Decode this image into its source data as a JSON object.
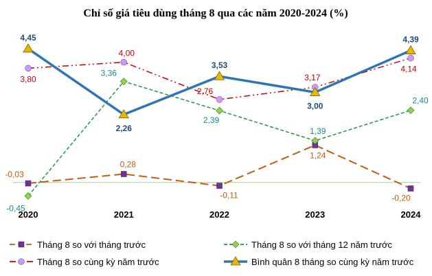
{
  "chart_data": {
    "type": "line",
    "title": "Chỉ số giá tiêu dùng tháng 8 qua các năm 2020-2024 (%)",
    "categories": [
      "2020",
      "2021",
      "2022",
      "2023",
      "2024"
    ],
    "ylim": [
      -0.6,
      4.7
    ],
    "grid": false,
    "legend_position": "bottom",
    "series": [
      {
        "name": "Tháng 8 so với tháng trước",
        "values": [
          -0.03,
          0.28,
          -0.11,
          1.24,
          -0.2
        ],
        "labels": [
          "-0,03",
          "0,28",
          "-0,11",
          "1,24",
          "-0,20"
        ],
        "color": "#c55a11",
        "marker_color": "#7030a0",
        "marker": "square",
        "dash": "long-dash"
      },
      {
        "name": "Tháng 8 so với tháng 12 năm trước",
        "values": [
          -0.45,
          3.36,
          2.39,
          1.39,
          2.4
        ],
        "labels": [
          "-0,45",
          "3,36",
          "2,39",
          "1,39",
          "2,40"
        ],
        "color": "#1a9a3a",
        "label_color": "#1a8a8a",
        "marker_color": "#92d050",
        "marker": "diamond",
        "dash": "dash"
      },
      {
        "name": "Tháng 8 so cùng kỳ năm trước",
        "values": [
          3.8,
          4.0,
          2.76,
          3.17,
          4.14
        ],
        "labels": [
          "3,80",
          "4,00",
          "2,76",
          "3,17",
          "4,14"
        ],
        "color": "#c00000",
        "marker_color": "#cc99ff",
        "marker": "circle",
        "dash": "dash-dot-dot"
      },
      {
        "name": "Bình quân 8 tháng so cùng kỳ năm trước",
        "values": [
          4.45,
          2.26,
          3.53,
          3.0,
          4.39
        ],
        "labels": [
          "4,45",
          "2,26",
          "3,53",
          "3,00",
          "4,39"
        ],
        "color": "#2e75b6",
        "label_color": "#1f4e79",
        "marker_color": "#e6b800",
        "marker": "triangle",
        "dash": "solid"
      }
    ]
  }
}
